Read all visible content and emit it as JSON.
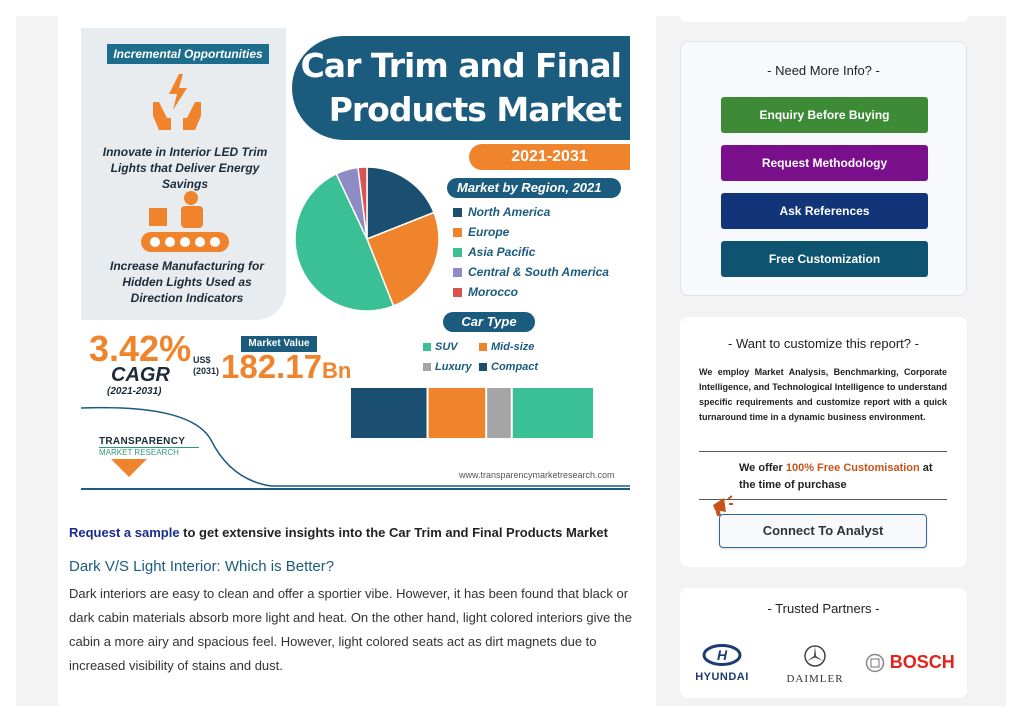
{
  "infographic": {
    "opportunities_label": "Incremental Opportunities",
    "opp1_text": "Innovate in Interior LED Trim Lights that Deliver Energy Savings",
    "opp2_text": "Increase Manufacturing for Hidden Lights Used as Direction Indicators",
    "title_line1": "Car Trim and Final",
    "title_line2": "Products Market",
    "years": "2021-2031",
    "region_heading": "Market by Region, 2021",
    "regions": [
      {
        "label": "North America",
        "color": "#1b4f72"
      },
      {
        "label": "Europe",
        "color": "#f0842c"
      },
      {
        "label": "Asia Pacific",
        "color": "#3bbf95"
      },
      {
        "label": "Central & South America",
        "color": "#8e8cc4"
      },
      {
        "label": "Morocco",
        "color": "#d9534f"
      }
    ],
    "car_type_heading": "Car Type",
    "car_types": [
      {
        "label": "SUV",
        "color": "#3bbf95"
      },
      {
        "label": "Mid-size",
        "color": "#f0842c"
      },
      {
        "label": "Luxury",
        "color": "#a5a5a5"
      },
      {
        "label": "Compact",
        "color": "#1b4f72"
      }
    ],
    "cagr_value": "3.42%",
    "cagr_label": "CAGR",
    "cagr_years": "(2021-2031)",
    "market_value_label": "Market Value",
    "mv_currency": "US$",
    "mv_year": "(2031)",
    "mv_value": "182.17",
    "mv_unit": "Bn",
    "logo_name": "TRANSPARENCY",
    "logo_sub": "MARKET RESEARCH",
    "website": "www.transparencymarketresearch.com"
  },
  "chart_data": [
    {
      "type": "pie",
      "title": "Market by Region, 2021",
      "categories": [
        "North America",
        "Europe",
        "Asia Pacific",
        "Central & South America",
        "Morocco"
      ],
      "values": [
        19,
        25,
        49,
        5,
        2
      ]
    },
    {
      "type": "bar",
      "title": "Car Type",
      "categories": [
        "Compact",
        "Mid-size",
        "Luxury",
        "SUV"
      ],
      "values": [
        32,
        24,
        10,
        34
      ]
    }
  ],
  "article": {
    "sample_link": "Request a sample",
    "sample_rest": " to get extensive insights into the Car Trim and Final Products Market",
    "heading": "Dark V/S Light Interior: Which is Better?",
    "paragraph": "Dark interiors are easy to clean and offer a sportier vibe. However, it has been found that black or dark cabin materials absorb more light and heat. On the other hand, light colored interiors give the cabin a more airy and spacious feel. However, light colored seats act as dirt magnets due to increased visibility of stains and dust."
  },
  "sidebar": {
    "info_title": "- Need More Info? -",
    "buttons": [
      {
        "label": "Enquiry Before Buying",
        "color": "#3d8b37"
      },
      {
        "label": "Request Methodology",
        "color": "#7a0f8c"
      },
      {
        "label": "Ask References",
        "color": "#12357a"
      },
      {
        "label": "Free Customization",
        "color": "#0e5470"
      }
    ],
    "custom_title": "- Want to customize this report? -",
    "custom_desc": "We employ Market Analysis, Benchmarking, Corporate Intelligence, and Technological Intelligence to understand specific requirements and customize report with a quick turnaround time in a dynamic business environment.",
    "offer_pre": "We offer ",
    "offer_hl": "100% Free Customisation",
    "offer_post": " at the time of purchase",
    "connect_label": "Connect To Analyst",
    "partners_title": "- Trusted Partners -",
    "partners": [
      "HYUNDAI",
      "DAIMLER",
      "BOSCH"
    ]
  }
}
